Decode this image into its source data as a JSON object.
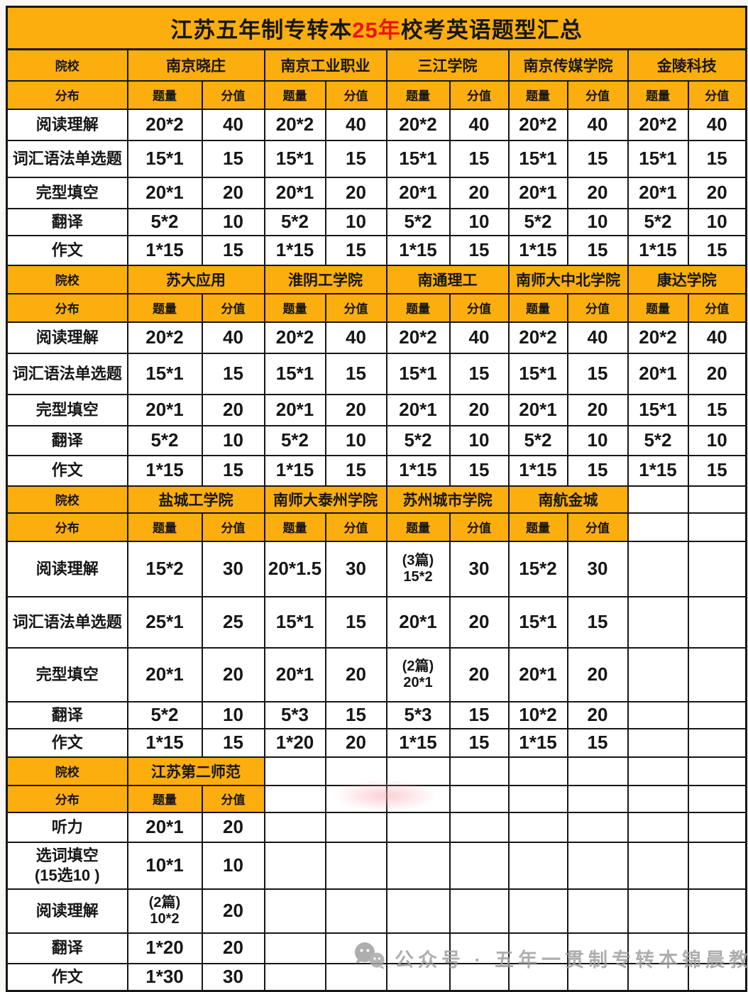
{
  "title": {
    "prefix": "江苏五年制专转本",
    "highlight": "25年",
    "suffix": "校考英语题型汇总"
  },
  "labels": {
    "college": "院校",
    "distribution": "分布",
    "quantity": "题量",
    "score": "分值"
  },
  "sections": [
    {
      "colleges": [
        "南京晓庄",
        "南京工业职业",
        "三江学院",
        "南京传媒学院",
        "金陵科技"
      ],
      "empty_cols": 0,
      "rows": [
        {
          "label": "阅读理解",
          "cells": [
            [
              "20*2",
              "40"
            ],
            [
              "20*2",
              "40"
            ],
            [
              "20*2",
              "40"
            ],
            [
              "20*2",
              "40"
            ],
            [
              "20*2",
              "40"
            ]
          ]
        },
        {
          "label": "词汇语法单选题",
          "cells": [
            [
              "15*1",
              "15"
            ],
            [
              "15*1",
              "15"
            ],
            [
              "15*1",
              "15"
            ],
            [
              "15*1",
              "15"
            ],
            [
              "15*1",
              "15"
            ]
          ]
        },
        {
          "label": "完型填空",
          "cells": [
            [
              "20*1",
              "20"
            ],
            [
              "20*1",
              "20"
            ],
            [
              "20*1",
              "20"
            ],
            [
              "20*1",
              "20"
            ],
            [
              "20*1",
              "20"
            ]
          ]
        },
        {
          "label": "翻译",
          "cells": [
            [
              "5*2",
              "10"
            ],
            [
              "5*2",
              "10"
            ],
            [
              "5*2",
              "10"
            ],
            [
              "5*2",
              "10"
            ],
            [
              "5*2",
              "10"
            ]
          ]
        },
        {
          "label": "作文",
          "cells": [
            [
              "1*15",
              "15"
            ],
            [
              "1*15",
              "15"
            ],
            [
              "1*15",
              "15"
            ],
            [
              "1*15",
              "15"
            ],
            [
              "1*15",
              "15"
            ]
          ]
        }
      ]
    },
    {
      "colleges": [
        "苏大应用",
        "淮阴工学院",
        "南通理工",
        "南师大中北学院",
        "康达学院"
      ],
      "empty_cols": 0,
      "rows": [
        {
          "label": "阅读理解",
          "cells": [
            [
              "20*2",
              "40"
            ],
            [
              "20*2",
              "40"
            ],
            [
              "20*2",
              "40"
            ],
            [
              "20*2",
              "40"
            ],
            [
              "20*2",
              "40"
            ]
          ]
        },
        {
          "label": "词汇语法单选题",
          "cells": [
            [
              "15*1",
              "15"
            ],
            [
              "15*1",
              "15"
            ],
            [
              "15*1",
              "15"
            ],
            [
              "15*1",
              "15"
            ],
            [
              "20*1",
              "20"
            ]
          ]
        },
        {
          "label": "完型填空",
          "cells": [
            [
              "20*1",
              "20"
            ],
            [
              "20*1",
              "20"
            ],
            [
              "20*1",
              "20"
            ],
            [
              "20*1",
              "20"
            ],
            [
              "15*1",
              "15"
            ]
          ]
        },
        {
          "label": "翻译",
          "cells": [
            [
              "5*2",
              "10"
            ],
            [
              "5*2",
              "10"
            ],
            [
              "5*2",
              "10"
            ],
            [
              "5*2",
              "10"
            ],
            [
              "5*2",
              "10"
            ]
          ]
        },
        {
          "label": "作文",
          "cells": [
            [
              "1*15",
              "15"
            ],
            [
              "1*15",
              "15"
            ],
            [
              "1*15",
              "15"
            ],
            [
              "1*15",
              "15"
            ],
            [
              "1*15",
              "15"
            ]
          ]
        }
      ]
    },
    {
      "colleges": [
        "盐城工学院",
        "南师大泰州学院",
        "苏州城市学院",
        "南航金城"
      ],
      "empty_cols": 2,
      "rows": [
        {
          "label": "阅读理解",
          "cells": [
            [
              "15*2",
              "30"
            ],
            [
              "20*1.5",
              "30"
            ],
            [
              "(3篇)\n15*2",
              "30"
            ],
            [
              "15*2",
              "30"
            ]
          ]
        },
        {
          "label": "词汇语法单选题",
          "cells": [
            [
              "25*1",
              "25"
            ],
            [
              "15*1",
              "15"
            ],
            [
              "20*1",
              "20"
            ],
            [
              "15*1",
              "15"
            ]
          ]
        },
        {
          "label": "完型填空",
          "cells": [
            [
              "20*1",
              "20"
            ],
            [
              "20*1",
              "20"
            ],
            [
              "(2篇)\n20*1",
              "20"
            ],
            [
              "20*1",
              "20"
            ]
          ]
        },
        {
          "label": "翻译",
          "cells": [
            [
              "5*2",
              "10"
            ],
            [
              "5*3",
              "15"
            ],
            [
              "5*3",
              "15"
            ],
            [
              "10*2",
              "20"
            ]
          ]
        },
        {
          "label": "作文",
          "cells": [
            [
              "1*15",
              "15"
            ],
            [
              "1*20",
              "20"
            ],
            [
              "1*15",
              "15"
            ],
            [
              "1*15",
              "15"
            ]
          ]
        }
      ]
    },
    {
      "colleges": [
        "江苏第二师范"
      ],
      "empty_cols": 8,
      "rows": [
        {
          "label": "听力",
          "cells": [
            [
              "20*1",
              "20"
            ]
          ]
        },
        {
          "label": "选词填空\n(15选10 )",
          "cells": [
            [
              "10*1",
              "10"
            ]
          ]
        },
        {
          "label": "阅读理解",
          "cells": [
            [
              "(2篇)\n10*2",
              "20"
            ]
          ]
        },
        {
          "label": "翻译",
          "cells": [
            [
              "1*20",
              "20"
            ]
          ]
        },
        {
          "label": "作文",
          "cells": [
            [
              "1*30",
              "30"
            ]
          ]
        }
      ]
    }
  ],
  "watermark": {
    "icon": "wechat-icon",
    "text": "公众号 · 五年一贯制专转本锦晨教育"
  },
  "colors": {
    "header_yellow": "#FBAE0D",
    "highlight_red": "#EE1406",
    "border_black": "#171717",
    "watermark_gray": "#9D9D9D"
  }
}
